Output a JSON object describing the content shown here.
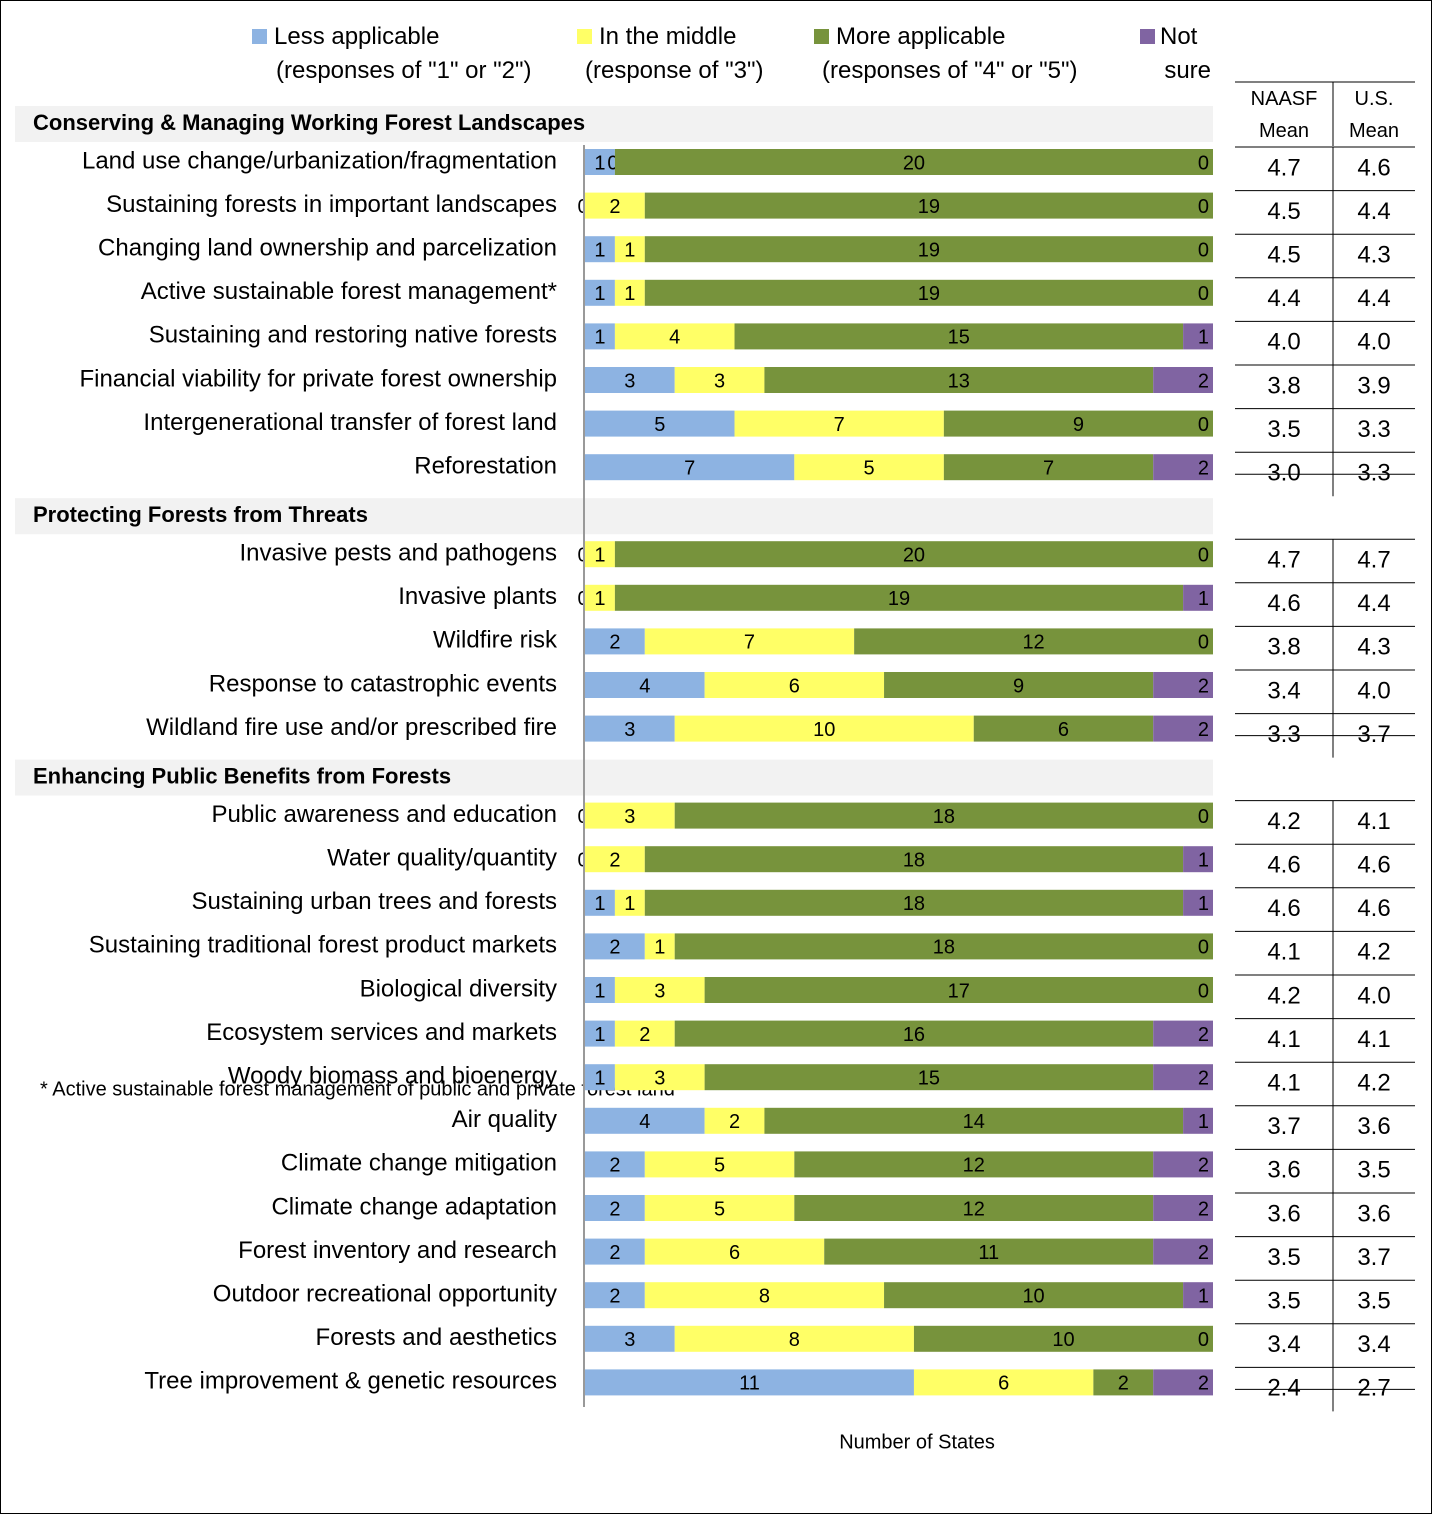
{
  "chart_data": {
    "type": "stacked-bar",
    "orientation": "horizontal",
    "x_label": "Number of States",
    "footnote": "* Active sustainable forest management of public and private forest land",
    "xlim": [
      0,
      21
    ],
    "groups": [
      {
        "title": "Conserving & Managing Working Forest Landscapes",
        "categories": [
          "Land use change/urbanization/fragmentation",
          "Sustaining forests in important landscapes",
          "Changing land ownership and parcelization",
          "Active sustainable forest management*",
          "Sustaining and restoring native forests",
          "Financial viability for private forest ownership",
          "Intergenerational transfer of forest land",
          "Reforestation"
        ]
      },
      {
        "title": "Protecting Forests from Threats",
        "categories": [
          "Invasive pests and pathogens",
          "Invasive plants",
          "Wildfire risk",
          "Response to catastrophic events",
          "Wildland fire use and/or prescribed fire"
        ]
      },
      {
        "title": "Enhancing Public Benefits from Forests",
        "categories": [
          "Public awareness and education",
          "Water quality/quantity",
          "Sustaining urban trees and forests",
          "Sustaining traditional forest product markets",
          "Biological diversity",
          "Ecosystem services and markets",
          "Woody biomass and bioenergy",
          "Air quality",
          "Climate change mitigation",
          "Climate change adaptation",
          "Forest inventory and research",
          "Outdoor recreational opportunity",
          "Forests and aesthetics",
          "Tree improvement & genetic resources"
        ]
      }
    ],
    "series": [
      {
        "name": "Less applicable\n(responses of \"1\" or \"2\")",
        "color": "#8db3e2",
        "values": [
          [
            1,
            0,
            1,
            1,
            1,
            3,
            5,
            7
          ],
          [
            0,
            0,
            2,
            4,
            3
          ],
          [
            0,
            0,
            1,
            2,
            1,
            1,
            1,
            4,
            2,
            2,
            2,
            2,
            3,
            11
          ]
        ]
      },
      {
        "name": "In the middle\n(response of \"3\")",
        "color": "#ffff66",
        "values": [
          [
            0,
            2,
            1,
            1,
            4,
            3,
            7,
            5
          ],
          [
            1,
            1,
            7,
            6,
            10
          ],
          [
            3,
            2,
            1,
            1,
            3,
            2,
            3,
            2,
            5,
            5,
            6,
            8,
            8,
            6
          ]
        ]
      },
      {
        "name": "More applicable\n(responses of \"4\" or \"5\")",
        "color": "#77933c",
        "values": [
          [
            20,
            19,
            19,
            19,
            15,
            13,
            9,
            7
          ],
          [
            20,
            19,
            12,
            9,
            6
          ],
          [
            18,
            18,
            18,
            18,
            17,
            16,
            15,
            14,
            12,
            12,
            11,
            10,
            10,
            2
          ]
        ]
      },
      {
        "name": "Not\nsure",
        "color": "#8064a2",
        "values": [
          [
            0,
            0,
            0,
            0,
            1,
            2,
            0,
            2
          ],
          [
            0,
            1,
            0,
            2,
            2
          ],
          [
            0,
            1,
            1,
            0,
            0,
            2,
            2,
            1,
            2,
            2,
            2,
            1,
            0,
            2
          ]
        ]
      }
    ],
    "table": {
      "columns": [
        {
          "header": "NAASF\nMean",
          "values": [
            [
              "4.7",
              "4.5",
              "4.5",
              "4.4",
              "4.0",
              "3.8",
              "3.5",
              "3.0"
            ],
            [
              "4.7",
              "4.6",
              "3.8",
              "3.4",
              "3.3"
            ],
            [
              "4.2",
              "4.6",
              "4.6",
              "4.1",
              "4.2",
              "4.1",
              "4.1",
              "3.7",
              "3.6",
              "3.6",
              "3.5",
              "3.5",
              "3.4",
              "2.4"
            ]
          ]
        },
        {
          "header": "U.S.\nMean",
          "values": [
            [
              "4.6",
              "4.4",
              "4.3",
              "4.4",
              "4.0",
              "3.9",
              "3.3",
              "3.3"
            ],
            [
              "4.7",
              "4.4",
              "4.3",
              "4.0",
              "3.7"
            ],
            [
              "4.1",
              "4.6",
              "4.6",
              "4.2",
              "4.0",
              "4.1",
              "4.2",
              "3.6",
              "3.5",
              "3.6",
              "3.7",
              "3.5",
              "3.4",
              "2.7"
            ]
          ]
        }
      ]
    }
  }
}
